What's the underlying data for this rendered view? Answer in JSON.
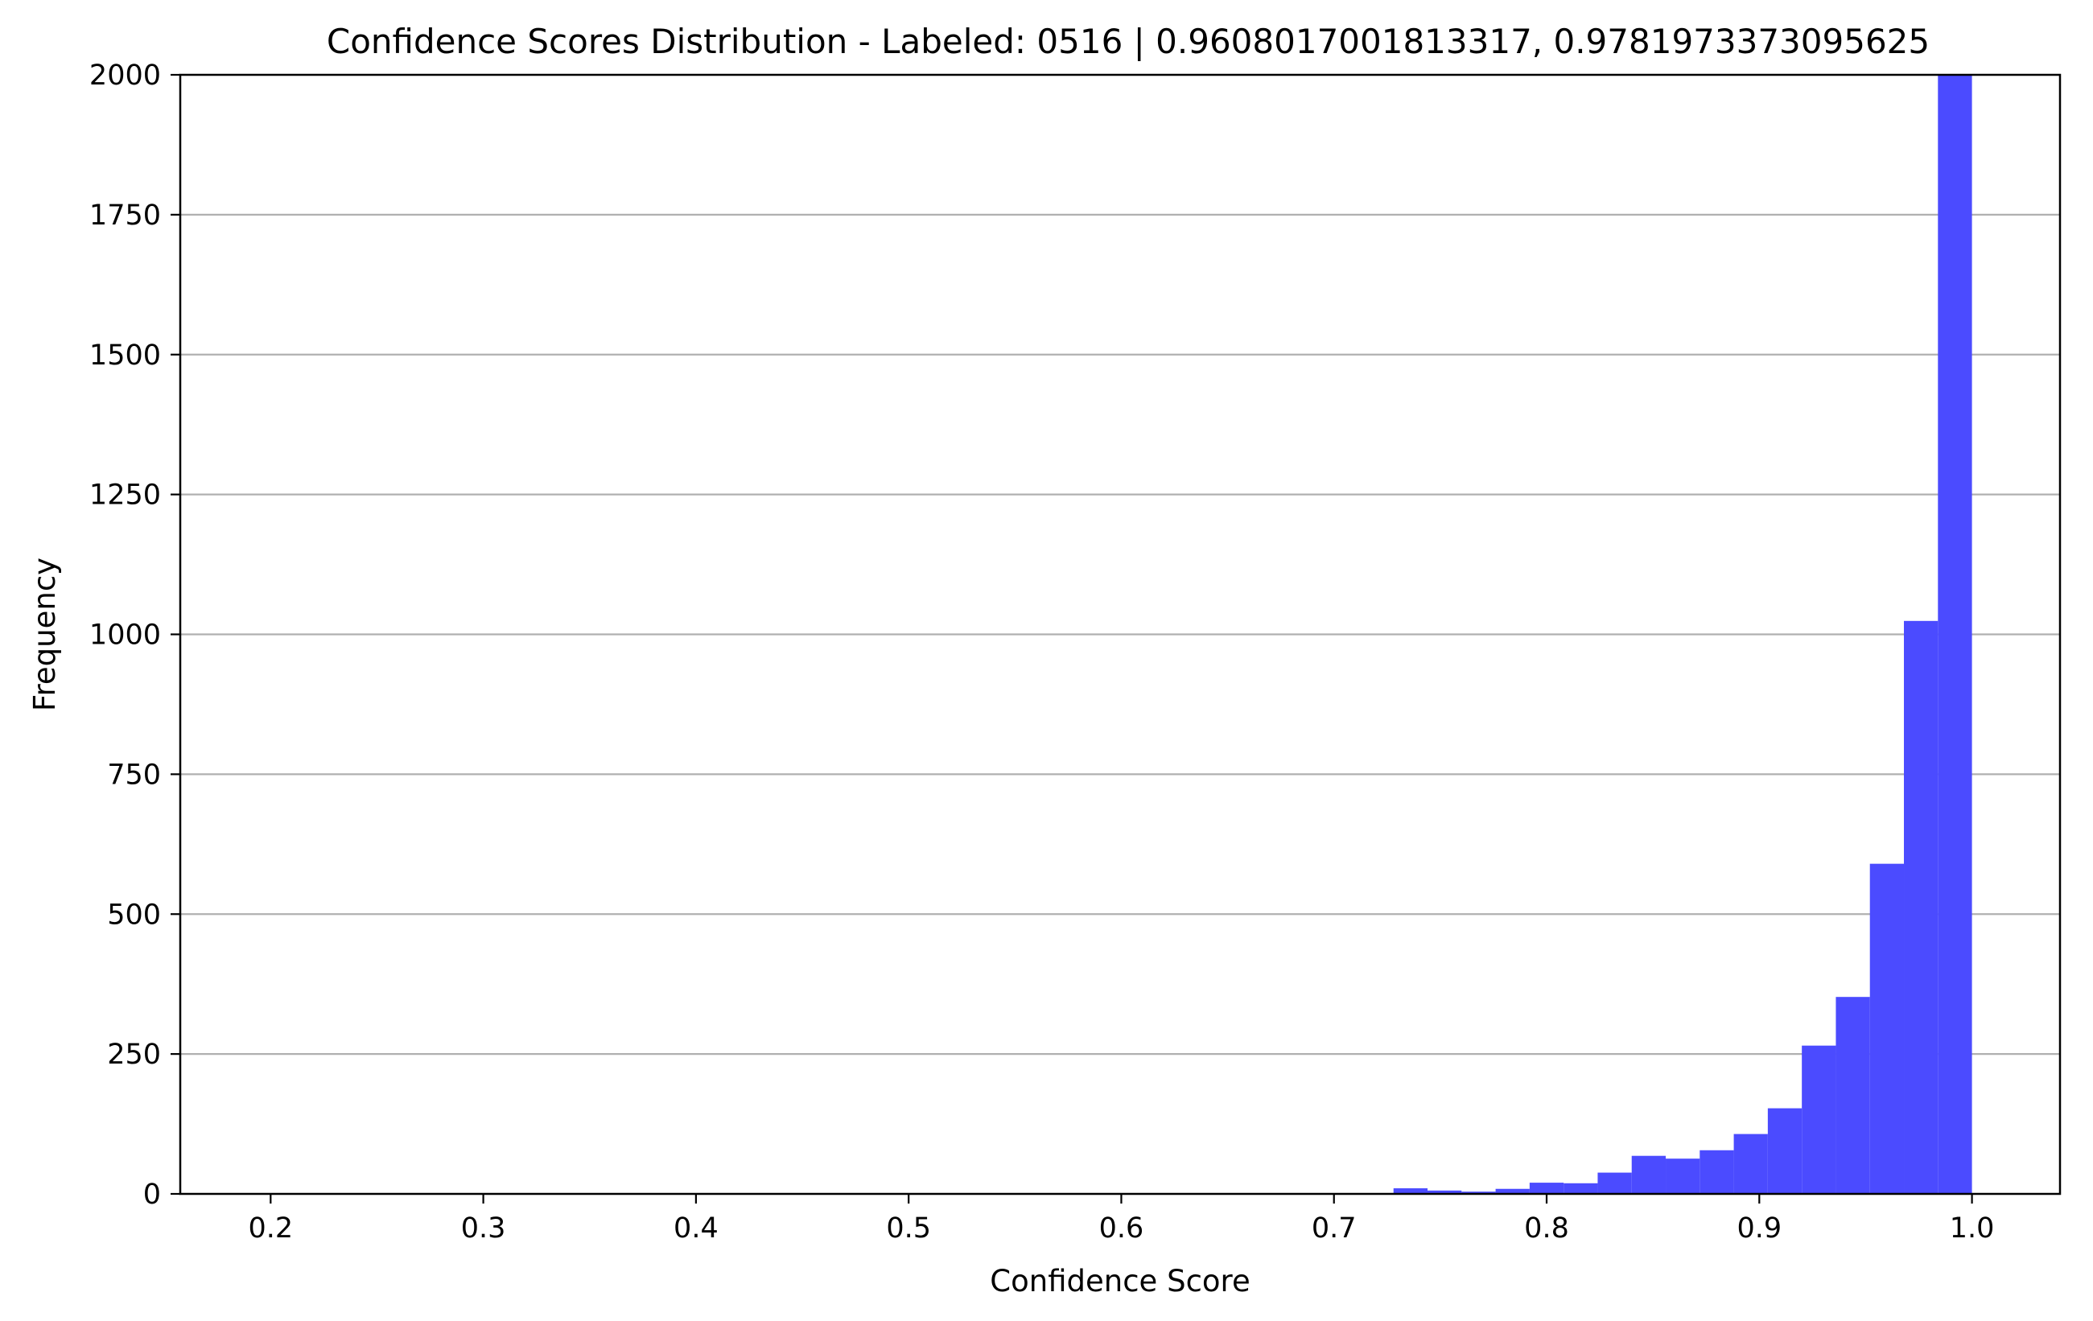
{
  "chart_data": {
    "type": "bar",
    "title": "Confidence Scores Distribution - Labeled: 0516 | 0.9608017001813317, 0.9781973373095625",
    "xlabel": "Confidence Score",
    "ylabel": "Frequency",
    "xlim": [
      0.1575,
      1.0414
    ],
    "ylim": [
      0,
      2000
    ],
    "xticks": [
      0.2,
      0.3,
      0.4,
      0.5,
      0.6,
      0.7,
      0.8,
      0.9,
      1.0
    ],
    "xtick_labels": [
      "0.2",
      "0.3",
      "0.4",
      "0.5",
      "0.6",
      "0.7",
      "0.8",
      "0.9",
      "1.0"
    ],
    "yticks": [
      0,
      250,
      500,
      750,
      1000,
      1250,
      1500,
      1750,
      2000
    ],
    "ytick_labels": [
      "0",
      "250",
      "500",
      "750",
      "1000",
      "1250",
      "1500",
      "1750",
      "2000"
    ],
    "grid": "horizontal",
    "bar_color": "#4b4bff",
    "bins": [
      {
        "x0": 0.44,
        "x1": 0.456,
        "value": 1
      },
      {
        "x0": 0.664,
        "x1": 0.68,
        "value": 1
      },
      {
        "x0": 0.712,
        "x1": 0.728,
        "value": 1
      },
      {
        "x0": 0.728,
        "x1": 0.744,
        "value": 10
      },
      {
        "x0": 0.744,
        "x1": 0.76,
        "value": 6
      },
      {
        "x0": 0.76,
        "x1": 0.776,
        "value": 4
      },
      {
        "x0": 0.776,
        "x1": 0.792,
        "value": 9
      },
      {
        "x0": 0.792,
        "x1": 0.808,
        "value": 20
      },
      {
        "x0": 0.808,
        "x1": 0.824,
        "value": 19
      },
      {
        "x0": 0.824,
        "x1": 0.84,
        "value": 38
      },
      {
        "x0": 0.84,
        "x1": 0.856,
        "value": 68
      },
      {
        "x0": 0.856,
        "x1": 0.872,
        "value": 63
      },
      {
        "x0": 0.872,
        "x1": 0.888,
        "value": 78
      },
      {
        "x0": 0.888,
        "x1": 0.904,
        "value": 107
      },
      {
        "x0": 0.904,
        "x1": 0.92,
        "value": 153
      },
      {
        "x0": 0.92,
        "x1": 0.936,
        "value": 265
      },
      {
        "x0": 0.936,
        "x1": 0.952,
        "value": 352
      },
      {
        "x0": 0.952,
        "x1": 0.968,
        "value": 590
      },
      {
        "x0": 0.968,
        "x1": 0.984,
        "value": 1024
      },
      {
        "x0": 0.984,
        "x1": 1.0,
        "value": 2000
      }
    ]
  }
}
